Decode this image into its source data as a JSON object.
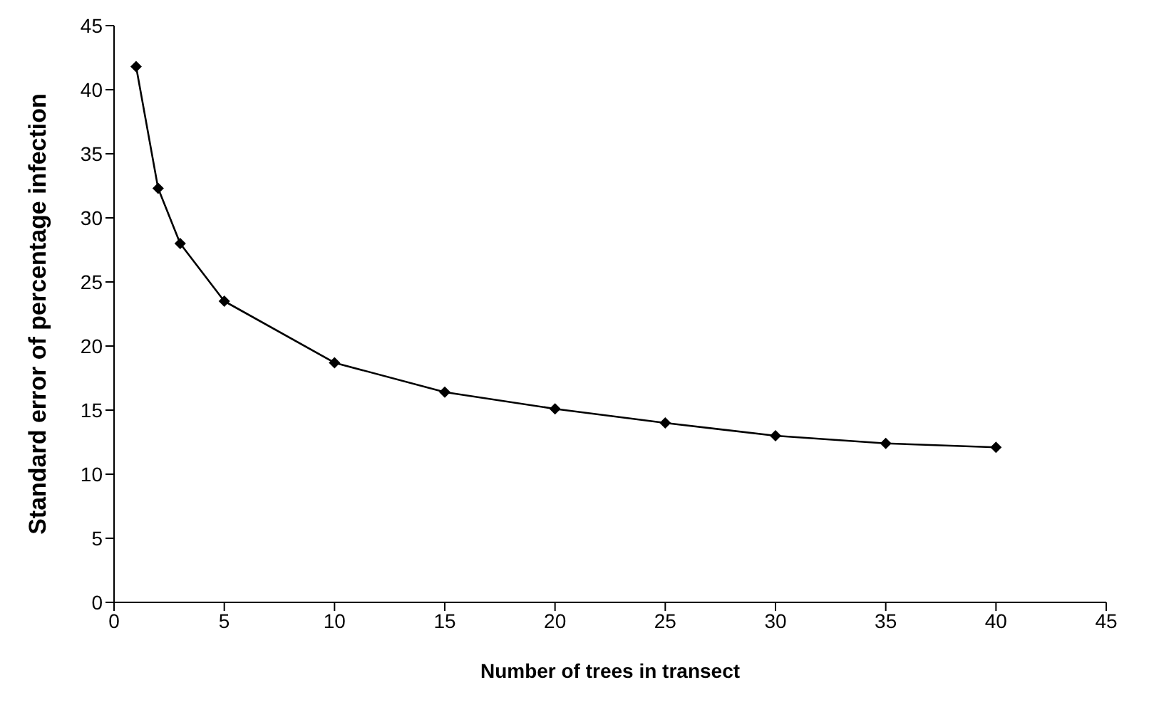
{
  "chart_data": {
    "type": "line",
    "xlabel": "Number of trees in transect",
    "ylabel": "Standard error of percentage infection",
    "x": [
      1,
      2,
      3,
      5,
      10,
      15,
      20,
      25,
      30,
      35,
      40
    ],
    "series": [
      {
        "color": "#000000",
        "values": [
          41.8,
          32.3,
          28.0,
          23.5,
          18.7,
          16.4,
          15.1,
          14.0,
          13.0,
          12.4,
          12.1
        ]
      }
    ],
    "xlim": [
      0,
      45
    ],
    "xticks": [
      0,
      5,
      10,
      15,
      20,
      25,
      30,
      35,
      40,
      45
    ],
    "ylim": [
      0,
      45
    ],
    "yticks": [
      0,
      5,
      10,
      15,
      20,
      25,
      30,
      35,
      40,
      45
    ],
    "grid": false,
    "legend": false,
    "marker": "diamond",
    "line_style": "solid"
  }
}
